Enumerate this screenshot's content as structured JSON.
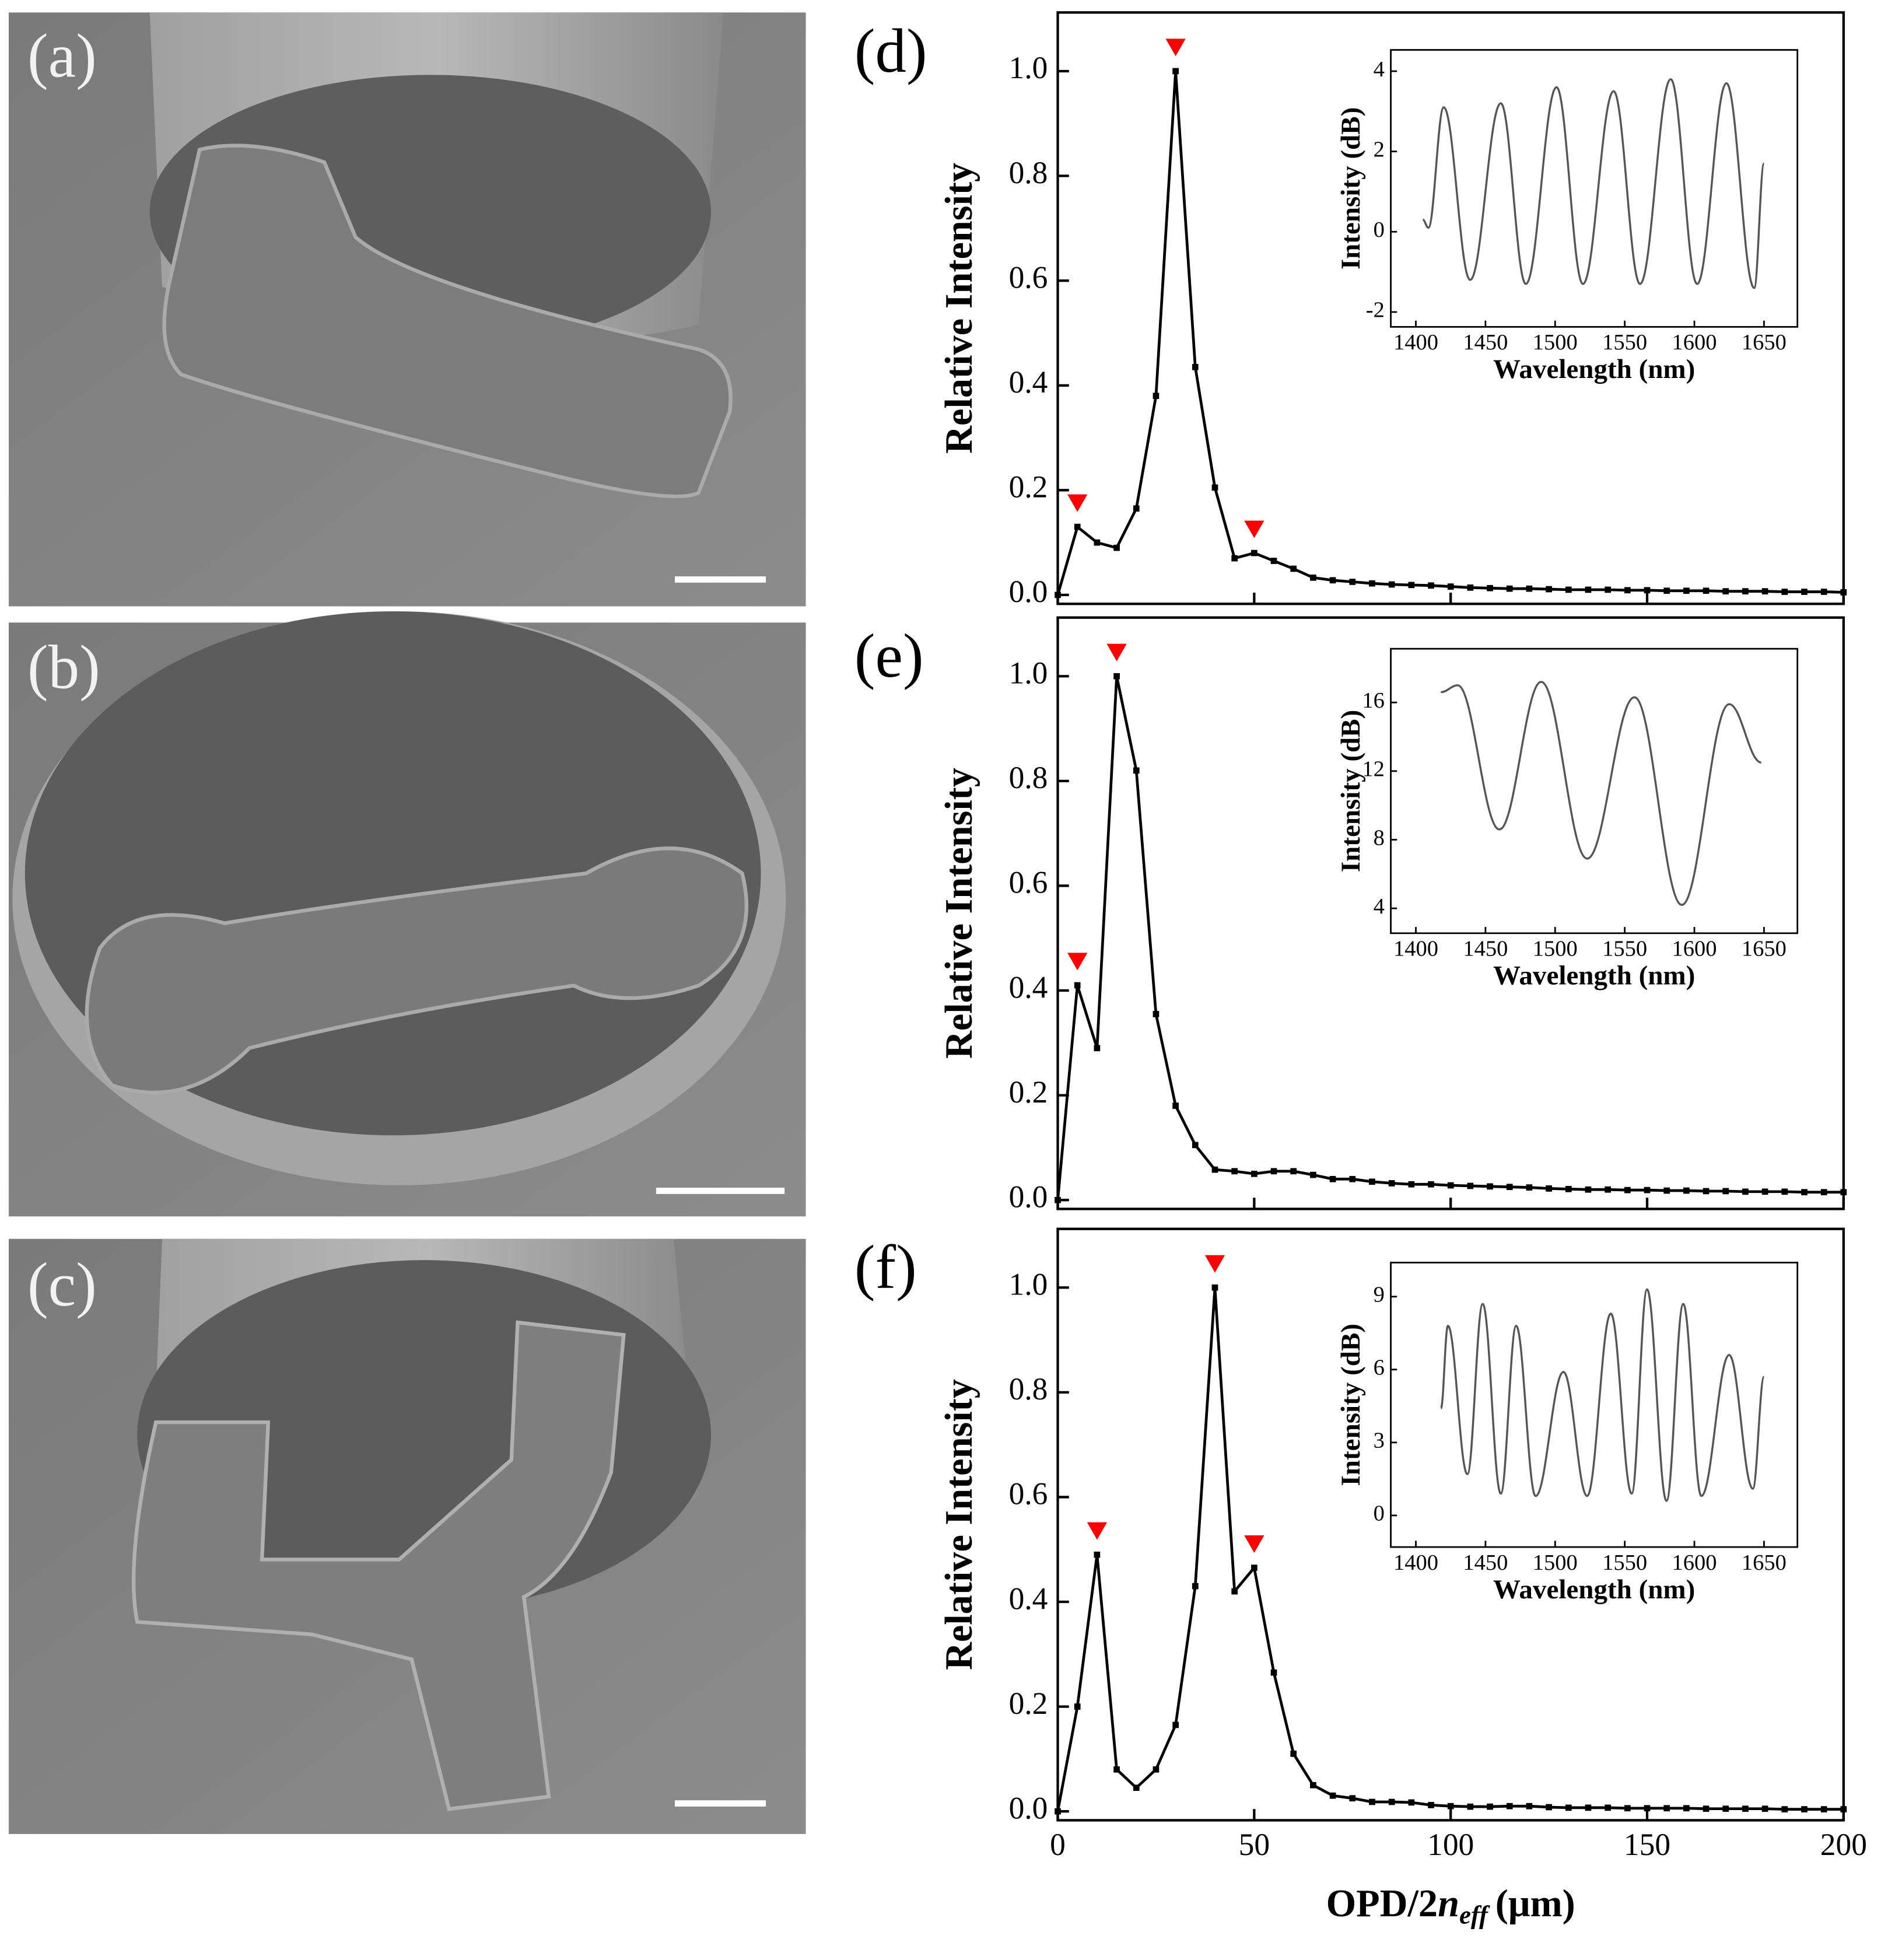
{
  "panels": [
    {
      "label": "(a)"
    },
    {
      "label": "(b)"
    },
    {
      "label": "(c)"
    }
  ],
  "chart_data": [
    {
      "type": "line",
      "panel_label": "(d)",
      "ylabel": "Relative Intensity",
      "x": [
        0,
        5,
        10,
        15,
        20,
        25,
        30,
        35,
        40,
        45,
        50,
        55,
        60,
        65,
        70,
        75,
        80,
        85,
        90,
        95,
        100,
        105,
        110,
        115,
        120,
        125,
        130,
        135,
        140,
        145,
        150,
        155,
        160,
        165,
        170,
        175,
        180,
        185,
        190,
        195,
        200
      ],
      "series": [
        {
          "color": "#000000",
          "values": [
            0.0,
            0.13,
            0.1,
            0.09,
            0.165,
            0.38,
            1.0,
            0.435,
            0.205,
            0.07,
            0.08,
            0.065,
            0.05,
            0.033,
            0.028,
            0.025,
            0.022,
            0.02,
            0.019,
            0.018,
            0.016,
            0.014,
            0.013,
            0.012,
            0.012,
            0.011,
            0.01,
            0.01,
            0.01,
            0.009,
            0.009,
            0.008,
            0.008,
            0.008,
            0.007,
            0.007,
            0.007,
            0.006,
            0.006,
            0.006,
            0.005
          ]
        }
      ],
      "peak_marker_color": "#ff0000",
      "xlim": [
        0,
        200
      ],
      "xticks": [
        0,
        50,
        100,
        150,
        200
      ],
      "xtick_labels": false,
      "ylim": [
        -0.017,
        1.112
      ],
      "yticks": [
        {
          "value": 0,
          "label": "0.0"
        },
        0.2,
        0.4,
        0.6,
        0.8,
        {
          "value": 1,
          "label": "1.0"
        }
      ],
      "inset": {
        "type": "line",
        "xlabel": "Wavelength (nm)",
        "ylabel": "Intensity (dB)",
        "color": "#555555",
        "x": [
          1405,
          1409,
          1420,
          1439,
          1461,
          1479,
          1501,
          1520,
          1542,
          1561,
          1583,
          1602,
          1623,
          1643,
          1650
        ],
        "values": [
          0.3,
          0.1,
          3.1,
          -1.2,
          3.2,
          -1.3,
          3.6,
          -1.3,
          3.5,
          -1.3,
          3.8,
          -1.3,
          3.7,
          -1.4,
          1.7
        ],
        "xlim": [
          1382,
          1674
        ],
        "xticks": [
          1400,
          1450,
          1500,
          1550,
          1600,
          1650
        ],
        "ylim": [
          -2.37,
          4.53
        ],
        "yticks": [
          -2,
          0,
          2,
          4
        ]
      }
    },
    {
      "type": "line",
      "panel_label": "(e)",
      "ylabel": "Relative Intensity",
      "x": [
        0,
        5,
        10,
        15,
        20,
        25,
        30,
        35,
        40,
        45,
        50,
        55,
        60,
        65,
        70,
        75,
        80,
        85,
        90,
        95,
        100,
        105,
        110,
        115,
        120,
        125,
        130,
        135,
        140,
        145,
        150,
        155,
        160,
        165,
        170,
        175,
        180,
        185,
        190,
        195,
        200
      ],
      "series": [
        {
          "color": "#000000",
          "values": [
            0.0,
            0.41,
            0.29,
            1.0,
            0.82,
            0.355,
            0.18,
            0.105,
            0.058,
            0.055,
            0.05,
            0.055,
            0.055,
            0.048,
            0.04,
            0.04,
            0.035,
            0.032,
            0.03,
            0.03,
            0.028,
            0.027,
            0.026,
            0.025,
            0.024,
            0.022,
            0.021,
            0.02,
            0.02,
            0.019,
            0.019,
            0.018,
            0.018,
            0.017,
            0.017,
            0.016,
            0.016,
            0.016,
            0.015,
            0.015,
            0.015
          ]
        }
      ],
      "peak_marker_color": "#ff0000",
      "xlim": [
        0,
        200
      ],
      "xticks": [
        0,
        50,
        100,
        150,
        200
      ],
      "xtick_labels": false,
      "ylim": [
        -0.017,
        1.112
      ],
      "yticks": [
        {
          "value": 0,
          "label": "0.0"
        },
        0.2,
        0.4,
        0.6,
        0.8,
        {
          "value": 1,
          "label": "1.0"
        }
      ],
      "inset": {
        "type": "line",
        "xlabel": "Wavelength (nm)",
        "ylabel": "Intensity (dB)",
        "color": "#555555",
        "x": [
          1418,
          1430,
          1460,
          1490,
          1523,
          1557,
          1591,
          1625,
          1648
        ],
        "values": [
          16.6,
          17.0,
          8.6,
          17.2,
          6.9,
          16.3,
          4.2,
          15.9,
          12.5
        ],
        "xlim": [
          1382,
          1674
        ],
        "xticks": [
          1400,
          1450,
          1500,
          1550,
          1600,
          1650
        ],
        "ylim": [
          2.55,
          19.13
        ],
        "yticks": [
          4,
          8,
          12,
          16
        ]
      }
    },
    {
      "type": "line",
      "panel_label": "(f)",
      "ylabel": "Relative Intensity",
      "xlabel": {
        "text": "OPD/2",
        "var": "n",
        "sub": "eff",
        "unit": "(μm)"
      },
      "x": [
        0,
        5,
        10,
        15,
        20,
        25,
        30,
        35,
        40,
        45,
        50,
        55,
        60,
        65,
        70,
        75,
        80,
        85,
        90,
        95,
        100,
        105,
        110,
        115,
        120,
        125,
        130,
        135,
        140,
        145,
        150,
        155,
        160,
        165,
        170,
        175,
        180,
        185,
        190,
        195,
        200
      ],
      "series": [
        {
          "color": "#000000",
          "values": [
            0.0,
            0.2,
            0.49,
            0.08,
            0.045,
            0.08,
            0.165,
            0.43,
            1.0,
            0.42,
            0.465,
            0.265,
            0.11,
            0.05,
            0.03,
            0.025,
            0.018,
            0.018,
            0.017,
            0.012,
            0.01,
            0.009,
            0.009,
            0.01,
            0.01,
            0.008,
            0.007,
            0.007,
            0.007,
            0.006,
            0.006,
            0.006,
            0.006,
            0.005,
            0.005,
            0.005,
            0.005,
            0.004,
            0.004,
            0.004,
            0.004
          ]
        }
      ],
      "peak_marker_color": "#ff0000",
      "xlim": [
        0,
        200
      ],
      "xticks": [
        0,
        50,
        100,
        150,
        200
      ],
      "xtick_labels": true,
      "ylim": [
        -0.017,
        1.112
      ],
      "yticks": [
        {
          "value": 0,
          "label": "0.0"
        },
        0.2,
        0.4,
        0.6,
        0.8,
        {
          "value": 1,
          "label": "1.0"
        }
      ],
      "inset": {
        "type": "line",
        "xlabel": "Wavelength (nm)",
        "ylabel": "Intensity (dB)",
        "color": "#555555",
        "x": [
          1418,
          1423,
          1437,
          1448,
          1461,
          1472,
          1486,
          1506,
          1523,
          1540,
          1555,
          1566,
          1580,
          1592,
          1605,
          1625,
          1642,
          1650
        ],
        "values": [
          4.4,
          7.8,
          1.7,
          8.7,
          0.9,
          7.8,
          0.8,
          5.9,
          0.8,
          8.3,
          0.9,
          9.3,
          0.6,
          8.7,
          0.8,
          6.6,
          1.1,
          5.7
        ],
        "xlim": [
          1382,
          1674
        ],
        "xticks": [
          1400,
          1450,
          1500,
          1550,
          1600,
          1650
        ],
        "ylim": [
          -1.3,
          10.4
        ],
        "yticks": [
          0,
          3,
          6,
          9
        ]
      }
    }
  ]
}
